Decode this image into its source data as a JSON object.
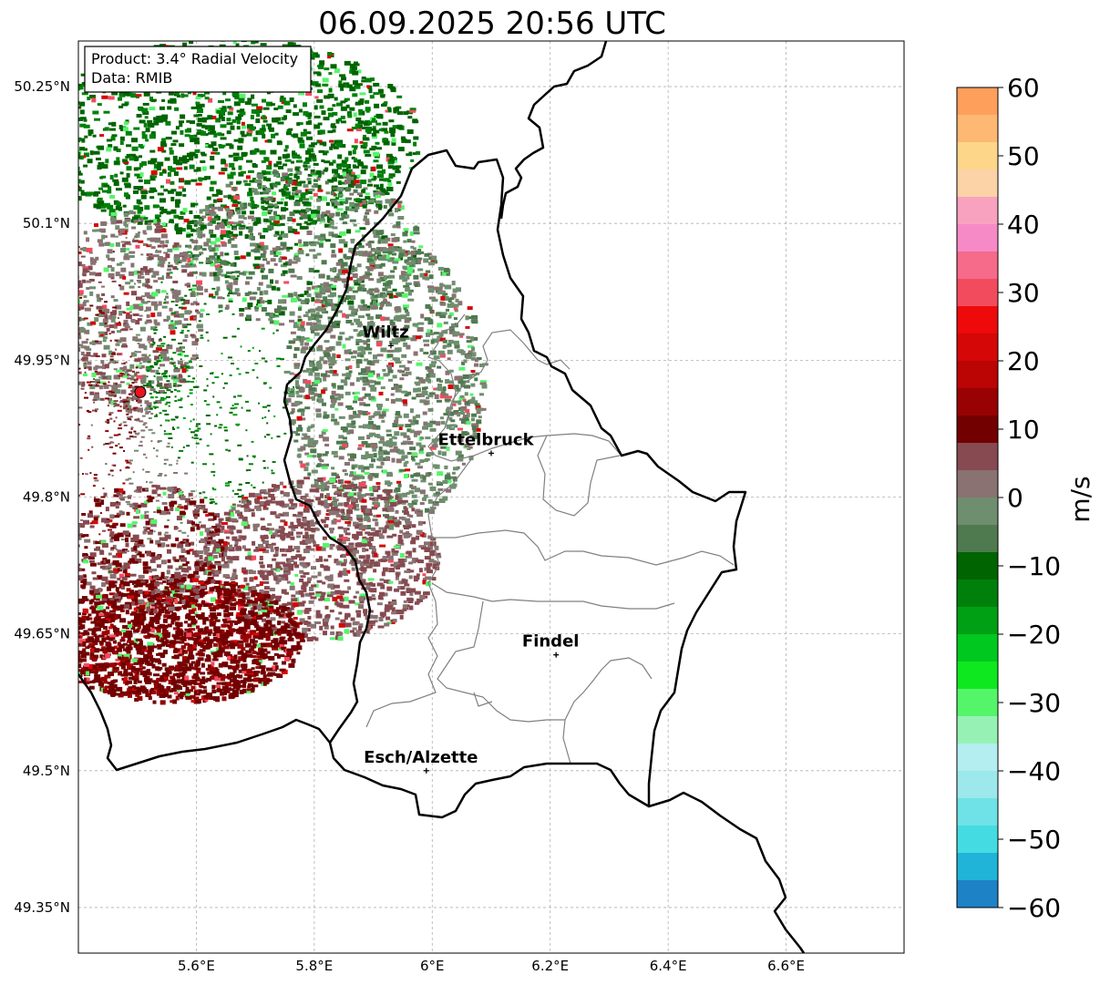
{
  "title": "06.09.2025 20:56 UTC",
  "info_box": {
    "product": "Product: 3.4° Radial Velocity",
    "source": "Data: RMIB"
  },
  "map": {
    "lon_range": [
      5.4,
      6.8
    ],
    "lat_range": [
      49.3,
      50.3
    ],
    "lat_ticks": [
      {
        "value": 50.25,
        "label": "50.25°N"
      },
      {
        "value": 50.1,
        "label": "50.1°N"
      },
      {
        "value": 49.95,
        "label": "49.95°N"
      },
      {
        "value": 49.8,
        "label": "49.8°N"
      },
      {
        "value": 49.65,
        "label": "49.65°N"
      },
      {
        "value": 49.5,
        "label": "49.5°N"
      },
      {
        "value": 49.35,
        "label": "49.35°N"
      }
    ],
    "lon_ticks": [
      {
        "value": 5.6,
        "label": "5.6°E"
      },
      {
        "value": 5.8,
        "label": "5.8°E"
      },
      {
        "value": 6.0,
        "label": "6°E"
      },
      {
        "value": 6.2,
        "label": "6.2°E"
      },
      {
        "value": 6.4,
        "label": "6.4°E"
      },
      {
        "value": 6.6,
        "label": "6.6°E"
      }
    ],
    "cities": [
      {
        "name": "Wiltz",
        "lon": 5.93,
        "lat": 49.966
      },
      {
        "name": "Ettelbruck",
        "lon": 6.1,
        "lat": 49.848
      },
      {
        "name": "Findel",
        "lon": 6.21,
        "lat": 49.627
      },
      {
        "name": "Esch/Alzette",
        "lon": 5.99,
        "lat": 49.5
      }
    ],
    "radar_site": {
      "lon": 5.505,
      "lat": 49.915,
      "color": "#e8141e"
    },
    "grid": true
  },
  "colorbar": {
    "unit": "m/s",
    "min": -60,
    "max": 60,
    "ticks": [
      {
        "value": 60,
        "label": "60"
      },
      {
        "value": 50,
        "label": "50"
      },
      {
        "value": 40,
        "label": "40"
      },
      {
        "value": 30,
        "label": "30"
      },
      {
        "value": 20,
        "label": "20"
      },
      {
        "value": 10,
        "label": "10"
      },
      {
        "value": 0,
        "label": "0"
      },
      {
        "value": -10,
        "label": "−10"
      },
      {
        "value": -20,
        "label": "−20"
      },
      {
        "value": -30,
        "label": "−30"
      },
      {
        "value": -40,
        "label": "−40"
      },
      {
        "value": -50,
        "label": "−50"
      },
      {
        "value": -60,
        "label": "−60"
      }
    ],
    "stops": [
      {
        "from": 56,
        "to": 60,
        "color": "#fe9f5c"
      },
      {
        "from": 52,
        "to": 56,
        "color": "#fdb873"
      },
      {
        "from": 48,
        "to": 52,
        "color": "#fdd68a"
      },
      {
        "from": 44,
        "to": 48,
        "color": "#fcd3a6"
      },
      {
        "from": 40,
        "to": 44,
        "color": "#f9a2c0"
      },
      {
        "from": 36,
        "to": 40,
        "color": "#f68ac6"
      },
      {
        "from": 32,
        "to": 36,
        "color": "#f66a8a"
      },
      {
        "from": 28,
        "to": 32,
        "color": "#f34b5e"
      },
      {
        "from": 24,
        "to": 28,
        "color": "#ee0a0a"
      },
      {
        "from": 20,
        "to": 24,
        "color": "#d60707"
      },
      {
        "from": 16,
        "to": 20,
        "color": "#bb0404"
      },
      {
        "from": 12,
        "to": 16,
        "color": "#980202"
      },
      {
        "from": 8,
        "to": 12,
        "color": "#730000"
      },
      {
        "from": 4,
        "to": 8,
        "color": "#864a50"
      },
      {
        "from": 0,
        "to": 4,
        "color": "#8a7272"
      },
      {
        "from": -4,
        "to": 0,
        "color": "#6f8e6f"
      },
      {
        "from": -8,
        "to": -4,
        "color": "#4f7a4f"
      },
      {
        "from": -12,
        "to": -8,
        "color": "#006400"
      },
      {
        "from": -16,
        "to": -12,
        "color": "#00800a"
      },
      {
        "from": -20,
        "to": -16,
        "color": "#00a014"
      },
      {
        "from": -24,
        "to": -20,
        "color": "#00c81e"
      },
      {
        "from": -28,
        "to": -24,
        "color": "#0ee81e"
      },
      {
        "from": -32,
        "to": -28,
        "color": "#55f56a"
      },
      {
        "from": -36,
        "to": -32,
        "color": "#96f2b4"
      },
      {
        "from": -40,
        "to": -36,
        "color": "#b4eef0"
      },
      {
        "from": -44,
        "to": -40,
        "color": "#9ce8ea"
      },
      {
        "from": -48,
        "to": -44,
        "color": "#6ee2e6"
      },
      {
        "from": -52,
        "to": -48,
        "color": "#44dce2"
      },
      {
        "from": -56,
        "to": -52,
        "color": "#20b4d8"
      },
      {
        "from": -60,
        "to": -56,
        "color": "#1e82c6"
      }
    ]
  }
}
